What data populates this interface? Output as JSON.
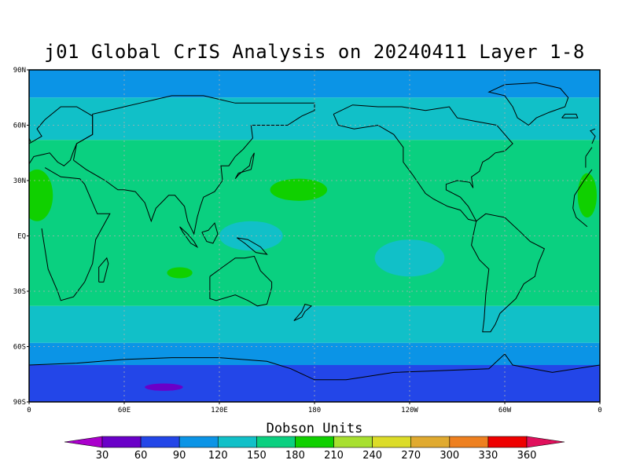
{
  "title": "j01 Global CrIS Analysis on 20240411 Layer 1-8",
  "lat_ticks": [
    "90N",
    "60N",
    "30N",
    "EQ",
    "30S",
    "60S",
    "90S"
  ],
  "lon_ticks": [
    "0",
    "60E",
    "120E",
    "180",
    "120W",
    "60W",
    "0"
  ],
  "colorbar": {
    "units": "Dobson Units",
    "labels": [
      "30",
      "60",
      "90",
      "120",
      "150",
      "180",
      "210",
      "240",
      "270",
      "300",
      "330",
      "360"
    ],
    "colors": [
      "#aa00cc",
      "#6a00c8",
      "#2346e8",
      "#0b94e6",
      "#11c0c8",
      "#0ad080",
      "#10d000",
      "#a8e030",
      "#dcdc28",
      "#e0aa30",
      "#ee8020",
      "#ee0000",
      "#e0105c"
    ]
  },
  "field_bands": [
    {
      "lat_from": 90,
      "lat_to": 75,
      "color": "#0b94e6"
    },
    {
      "lat_from": 75,
      "lat_to": 52,
      "color": "#11c0c8"
    },
    {
      "lat_from": 52,
      "lat_to": -38,
      "color": "#0ad080"
    },
    {
      "lat_from": -38,
      "lat_to": -58,
      "color": "#11c0c8"
    },
    {
      "lat_from": -58,
      "lat_to": -70,
      "color": "#0b94e6"
    },
    {
      "lat_from": -70,
      "lat_to": -90,
      "color": "#2346e8"
    }
  ],
  "blobs": [
    {
      "lon": 5,
      "lat": 22,
      "rx": 10,
      "ry": 14,
      "color": "#10d000"
    },
    {
      "lon": 170,
      "lat": 25,
      "rx": 18,
      "ry": 6,
      "color": "#10d000"
    },
    {
      "lon": 352,
      "lat": 22,
      "rx": 6,
      "ry": 12,
      "color": "#10d000"
    },
    {
      "lon": 95,
      "lat": -20,
      "rx": 8,
      "ry": 3,
      "color": "#10d000"
    },
    {
      "lon": 85,
      "lat": -82,
      "rx": 12,
      "ry": 2,
      "color": "#6a00c8"
    },
    {
      "lon": 140,
      "lat": 0,
      "rx": 20,
      "ry": 8,
      "color": "#11c0c8"
    },
    {
      "lon": 240,
      "lat": -12,
      "rx": 22,
      "ry": 10,
      "color": "#11c0c8"
    }
  ]
}
